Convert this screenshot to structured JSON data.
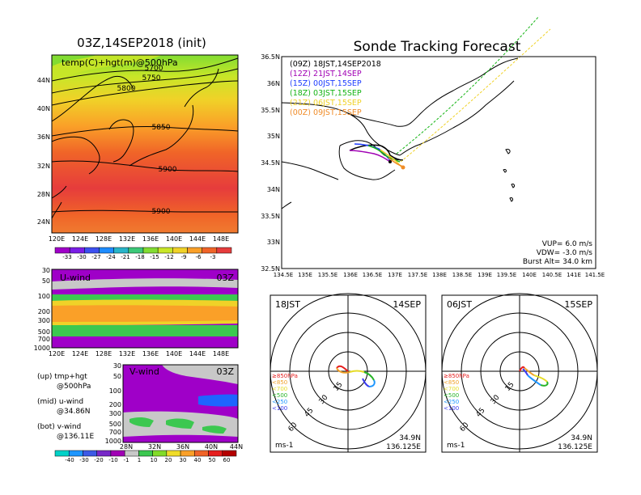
{
  "main_map": {
    "title": "03Z,14SEP2018 (init)",
    "subtitle": "temp(C)+hgt(m)@500hPa",
    "lat_ticks": [
      "44N",
      "40N",
      "36N",
      "32N",
      "28N",
      "24N"
    ],
    "lon_ticks": [
      "120E",
      "124E",
      "128E",
      "132E",
      "136E",
      "140E",
      "144E",
      "148E"
    ],
    "contour_labels": [
      "5700",
      "5750",
      "5800",
      "5850",
      "5900",
      "5900"
    ],
    "colorbar_labels": [
      "-33",
      "-30",
      "-27",
      "-24",
      "-21",
      "-18",
      "-15",
      "-12",
      "-9",
      "-6",
      "-3"
    ],
    "colorbar_colors": [
      "#9f00c8",
      "#7a1ee6",
      "#3c50f0",
      "#1e8cff",
      "#28b4c8",
      "#3cc878",
      "#82dc32",
      "#c8e628",
      "#f0d228",
      "#faa028",
      "#f06428",
      "#e63c3c"
    ]
  },
  "uwind": {
    "title": "U-wind",
    "time": "03Z",
    "p_ticks": [
      "30",
      "50",
      "100",
      "200",
      "300",
      "500",
      "700",
      "1000"
    ],
    "lon_ticks": [
      "120E",
      "124E",
      "128E",
      "132E",
      "136E",
      "140E",
      "144E",
      "148E"
    ]
  },
  "vwind": {
    "title": "V-wind",
    "time": "03Z",
    "p_ticks": [
      "30",
      "50",
      "100",
      "200",
      "300",
      "500",
      "700",
      "1000"
    ],
    "lat_ticks": [
      "28N",
      "32N",
      "36N",
      "40N",
      "44N"
    ],
    "colorbar_labels": [
      "-40",
      "-30",
      "-20",
      "-10",
      "-1",
      "1",
      "10",
      "20",
      "30",
      "40",
      "50",
      "60"
    ],
    "colorbar_colors": [
      "#00d2c8",
      "#1e96ff",
      "#3c5ae6",
      "#7828c8",
      "#a000b4",
      "#c8c8c8",
      "#3cc850",
      "#82dc28",
      "#f0dc28",
      "#faa028",
      "#f06428",
      "#e61e1e",
      "#b40000"
    ]
  },
  "legend_text": {
    "line1a": "(up) tmp+hgt",
    "line1b": "@500hPa",
    "line2a": "(mid) u-wind",
    "line2b": "@34.86N",
    "line3a": "(bot) v-wind",
    "line3b": "@136.11E"
  },
  "tracking": {
    "title": "Sonde Tracking Forecast",
    "lat_ticks": [
      "36.5N",
      "36N",
      "35.5N",
      "35N",
      "34.5N",
      "34N",
      "33.5N",
      "33N",
      "32.5N"
    ],
    "lon_ticks": [
      "134.5E",
      "135E",
      "135.5E",
      "136E",
      "136.5E",
      "137E",
      "137.5E",
      "138E",
      "138.5E",
      "139E",
      "139.5E",
      "140E",
      "140.5E",
      "141E",
      "141.5E"
    ],
    "launches": [
      {
        "label": "(09Z)  18JST,14SEP2018",
        "color": "#000000"
      },
      {
        "label": "(12Z)  21JST,14SEP",
        "color": "#a000b4"
      },
      {
        "label": "(15Z)  00JST,15SEP",
        "color": "#1e3cff"
      },
      {
        "label": "(18Z)  03JST,15SEP",
        "color": "#14b414"
      },
      {
        "label": "(21Z)  06JST,15SEP",
        "color": "#f0d228"
      },
      {
        "label": "(00Z)  09JST,15SEP",
        "color": "#f08c28"
      }
    ],
    "vup": "VUP=  6.0  m/s",
    "vdw": "VDW=  -3.0  m/s",
    "burst": "Burst Alt=  34.0  km"
  },
  "hodo_left": {
    "time": "18JST",
    "date": "14SEP",
    "rings": [
      "15",
      "30",
      "45",
      "60"
    ],
    "levels": [
      {
        "label": "≥850hPa",
        "color": "#e61e1e"
      },
      {
        "label": "<850",
        "color": "#f0a028"
      },
      {
        "label": "<700",
        "color": "#e6dc28"
      },
      {
        "label": "<500",
        "color": "#28b428"
      },
      {
        "label": "<250",
        "color": "#1e96ff"
      },
      {
        "label": "<100",
        "color": "#3c3cf0"
      }
    ],
    "unit": "ms-1",
    "lat": "34.9N",
    "lon": "136.125E"
  },
  "hodo_right": {
    "time": "06JST",
    "date": "15SEP",
    "rings": [
      "15",
      "30",
      "45",
      "60"
    ],
    "unit": "ms-1",
    "lat": "34.9N",
    "lon": "136.125E"
  }
}
